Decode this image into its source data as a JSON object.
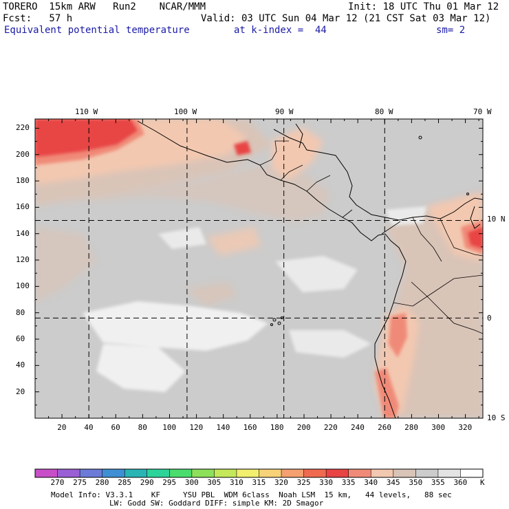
{
  "header": {
    "title": "TORERO  15km ARW   Run2    NCAR/MMM",
    "init": "Init: 18 UTC Thu 01 Mar 12",
    "fcst": "Fcst:   57 h",
    "valid": "Valid: 03 UTC Sun 04 Mar 12 (21 CST Sat 03 Mar 12)",
    "field": "Equivalent potential temperature",
    "kindex": "at k-index =  44",
    "smoothing": "sm= 2"
  },
  "map": {
    "lon_labels": [
      "110 W",
      "100 W",
      "90 W",
      "80 W",
      "70 W"
    ],
    "lat_labels": [
      "10 N",
      "0",
      "10 S"
    ],
    "y_ticks": [
      "220",
      "200",
      "180",
      "160",
      "140",
      "120",
      "100",
      "80",
      "60",
      "40",
      "20"
    ],
    "x_ticks": [
      "20",
      "40",
      "60",
      "80",
      "100",
      "120",
      "140",
      "160",
      "180",
      "200",
      "220",
      "240",
      "260",
      "280",
      "300",
      "320"
    ],
    "grid_i": [
      40,
      113,
      185,
      260
    ],
    "grid_j": [
      76,
      150
    ],
    "domain_max_i": 333,
    "domain_max_j": 227
  },
  "colorbar": {
    "labels": [
      "270",
      "275",
      "280",
      "285",
      "290",
      "295",
      "300",
      "305",
      "310",
      "315",
      "320",
      "325",
      "330",
      "335",
      "340",
      "345",
      "350",
      "355",
      "360"
    ],
    "unit": "K",
    "colors": [
      "#c84fc8",
      "#9a5fd4",
      "#6c7ad8",
      "#3f8fd4",
      "#2ab4b4",
      "#2dd49a",
      "#4bdc6e",
      "#8ce05a",
      "#c4e85a",
      "#f2ee6e",
      "#f8d278",
      "#f5a070",
      "#f06a50",
      "#e84444",
      "#f08a78",
      "#f3c8b0",
      "#d9c4b8",
      "#cccccc",
      "#e4e4e4",
      "#ffffff"
    ]
  },
  "footer": {
    "line1": "Model Info: V3.3.1    KF     YSU PBL  WDM 6class  Noah LSM  15 km,   44 levels,   88 sec",
    "line2": "LW: Godd SW: Goddard DIFF: simple KM: 2D Smagor"
  }
}
